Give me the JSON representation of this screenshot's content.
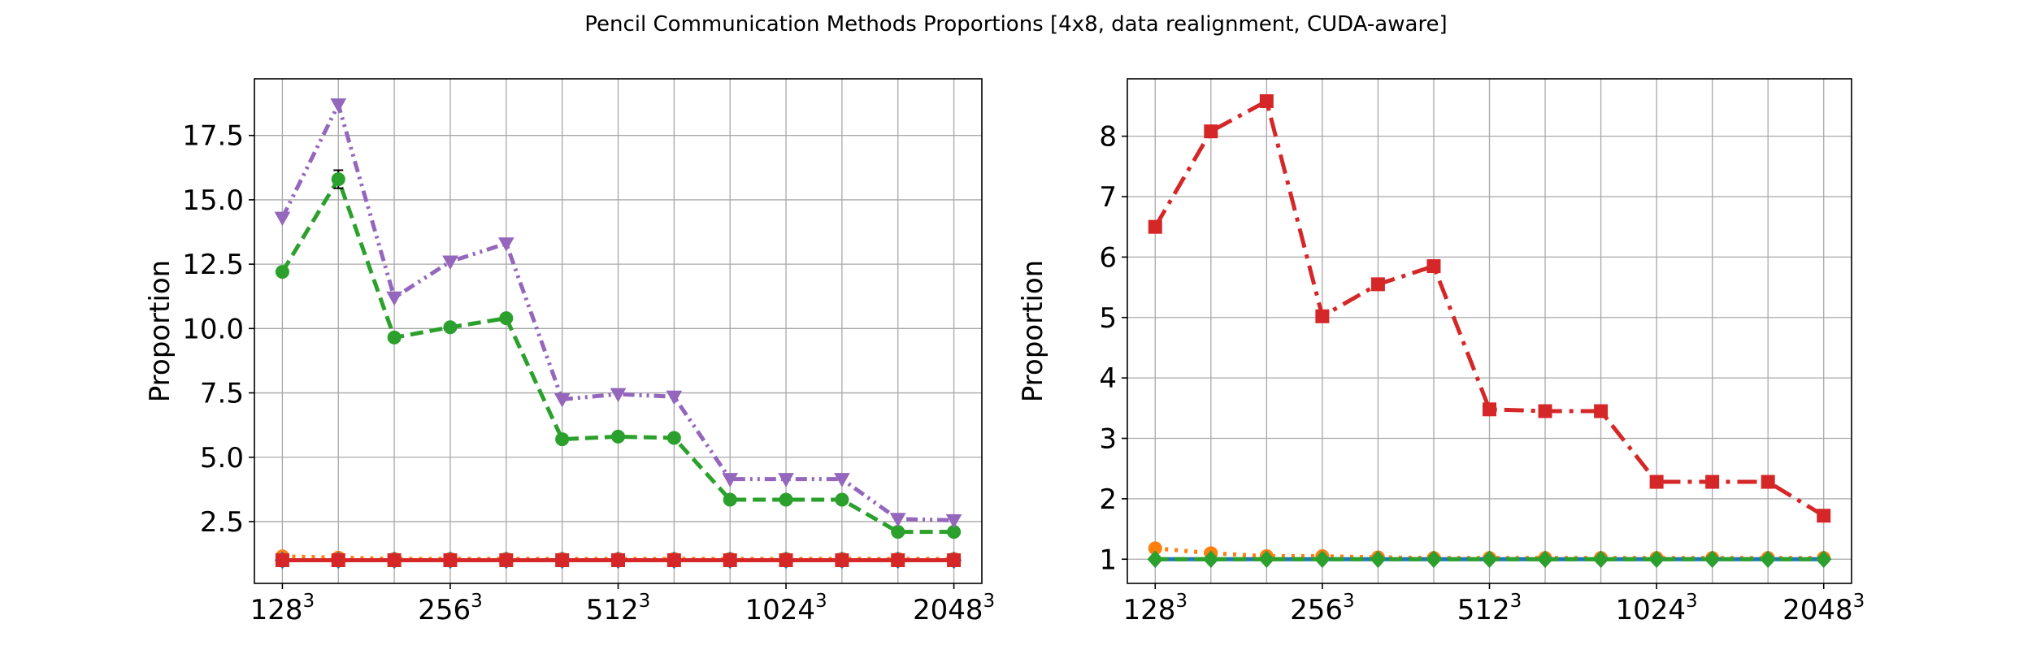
{
  "figure": {
    "title": "Pencil Communication Methods Proportions [4x8, data realignment, CUDA-aware]"
  },
  "chart_data": [
    {
      "type": "line",
      "ylabel": "Proportion",
      "xlim": [
        0.5,
        13.5
      ],
      "ylim": [
        0.1,
        19.7
      ],
      "grid": true,
      "x": [
        1,
        2,
        3,
        4,
        5,
        6,
        7,
        8,
        9,
        10,
        11,
        12,
        13
      ],
      "x_tick_positions": [
        1,
        4,
        7,
        10,
        13
      ],
      "x_tick_labels": [
        {
          "base": "128",
          "exp": "3"
        },
        {
          "base": "256",
          "exp": "3"
        },
        {
          "base": "512",
          "exp": "3"
        },
        {
          "base": "1024",
          "exp": "3"
        },
        {
          "base": "2048",
          "exp": "3"
        }
      ],
      "y_ticks": [
        2.5,
        5.0,
        7.5,
        10.0,
        12.5,
        15.0,
        17.5
      ],
      "y_tick_labels": [
        "2.5",
        "5.0",
        "7.5",
        "10.0",
        "12.5",
        "15.0",
        "17.5"
      ],
      "series": [
        {
          "color": "#ff7f0e",
          "dash": "4 8",
          "marker": "circle",
          "values": [
            1.15,
            1.1,
            1.05,
            1.05,
            1.05,
            1.05,
            1.05,
            1.05,
            1.05,
            1.05,
            1.05,
            1.05,
            1.05
          ]
        },
        {
          "color": "#1f77b4",
          "dash": "16 8",
          "marker": "diamond",
          "values": [
            1.0,
            1.0,
            1.0,
            1.0,
            1.0,
            1.0,
            1.0,
            1.0,
            1.0,
            1.0,
            1.0,
            1.0,
            1.0
          ]
        },
        {
          "color": "#2ca02c",
          "dash": "16 8",
          "marker": "circle",
          "values": [
            12.2,
            15.8,
            9.65,
            10.05,
            10.4,
            5.7,
            5.8,
            5.75,
            3.35,
            3.35,
            3.35,
            2.1,
            2.1
          ],
          "errors": [
            0.1,
            0.35,
            0.1,
            0.1,
            0.1,
            0.05,
            0.05,
            0.05,
            0.05,
            0.05,
            0.05,
            0.05,
            0.05
          ]
        },
        {
          "color": "#9467bd",
          "dash": "14 6 3 6 3 6",
          "marker": "triangle-down",
          "values": [
            14.3,
            18.7,
            11.2,
            12.6,
            13.3,
            7.25,
            7.45,
            7.35,
            4.15,
            4.15,
            4.15,
            2.6,
            2.55
          ]
        },
        {
          "color": "#d62728",
          "dash": "",
          "marker": "square",
          "values": [
            1.0,
            1.0,
            1.0,
            1.0,
            1.0,
            1.0,
            1.0,
            1.0,
            1.0,
            1.0,
            1.0,
            1.0,
            1.0
          ]
        }
      ]
    },
    {
      "type": "line",
      "ylabel": "Proportion",
      "xlim": [
        0.5,
        13.5
      ],
      "ylim": [
        0.6,
        8.95
      ],
      "grid": true,
      "x": [
        1,
        2,
        3,
        4,
        5,
        6,
        7,
        8,
        9,
        10,
        11,
        12,
        13
      ],
      "x_tick_positions": [
        1,
        4,
        7,
        10,
        13
      ],
      "x_tick_labels": [
        {
          "base": "128",
          "exp": "3"
        },
        {
          "base": "256",
          "exp": "3"
        },
        {
          "base": "512",
          "exp": "3"
        },
        {
          "base": "1024",
          "exp": "3"
        },
        {
          "base": "2048",
          "exp": "3"
        }
      ],
      "y_ticks": [
        1,
        2,
        3,
        4,
        5,
        6,
        7,
        8
      ],
      "y_tick_labels": [
        "1",
        "2",
        "3",
        "4",
        "5",
        "6",
        "7",
        "8"
      ],
      "series": [
        {
          "color": "#d62728",
          "dash": "24 9 5 9",
          "marker": "square",
          "values": [
            6.5,
            8.08,
            8.58,
            5.02,
            5.55,
            5.85,
            3.48,
            3.45,
            3.45,
            2.28,
            2.28,
            2.28,
            1.72
          ]
        },
        {
          "color": "#ff7f0e",
          "dash": "4 8",
          "marker": "circle",
          "values": [
            1.18,
            1.1,
            1.05,
            1.05,
            1.03,
            1.02,
            1.02,
            1.02,
            1.02,
            1.02,
            1.02,
            1.02,
            1.02
          ]
        },
        {
          "color": "#1f77b4",
          "dash": "",
          "marker": "diamond",
          "values": [
            1.0,
            1.0,
            1.0,
            1.0,
            1.0,
            1.0,
            1.0,
            1.0,
            1.0,
            1.0,
            1.0,
            1.0,
            1.0
          ]
        },
        {
          "color": "#2ca02c",
          "dash": "16 8",
          "marker": "diamond",
          "values": [
            1.0,
            1.0,
            1.0,
            1.0,
            1.0,
            1.0,
            1.0,
            1.0,
            1.0,
            1.0,
            1.0,
            1.0,
            1.0
          ]
        }
      ]
    }
  ]
}
